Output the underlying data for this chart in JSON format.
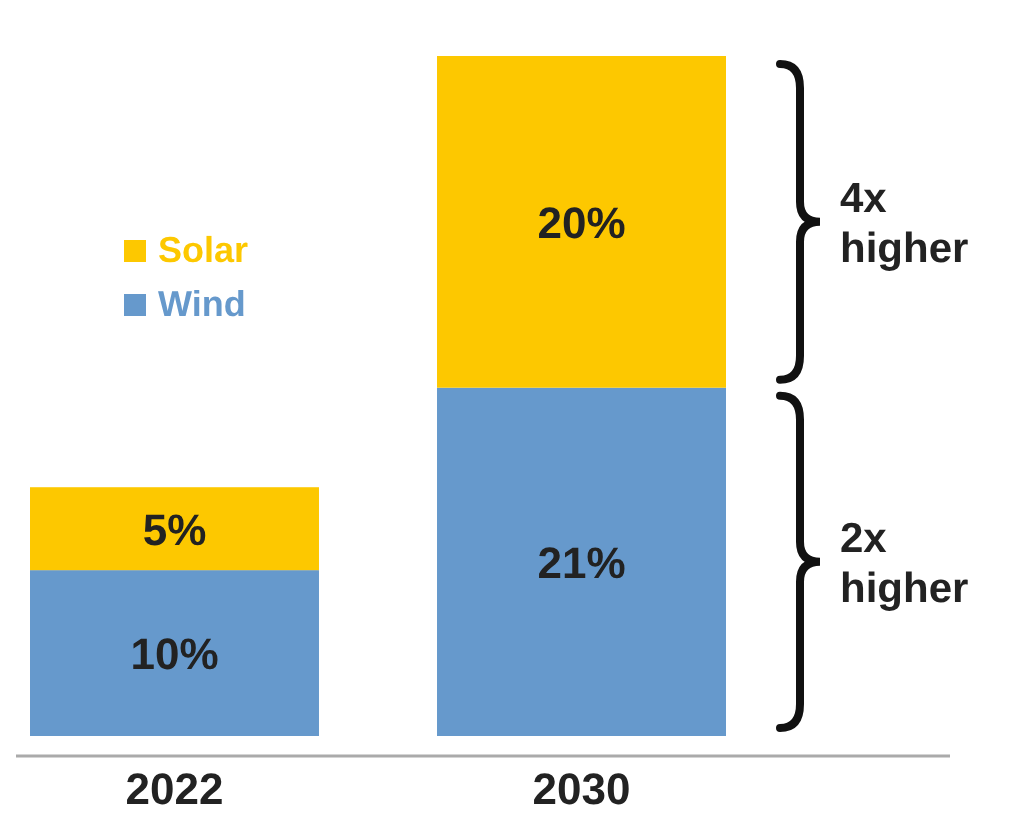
{
  "chart_data": {
    "type": "bar",
    "stacked": true,
    "categories": [
      "2022",
      "2030"
    ],
    "series": [
      {
        "name": "Wind",
        "color": "#6699cc",
        "values": [
          10,
          21
        ],
        "value_labels": [
          "10%",
          "21%"
        ]
      },
      {
        "name": "Solar",
        "color": "#fdc800",
        "values": [
          5,
          20
        ],
        "value_labels": [
          "5%",
          "20%"
        ]
      }
    ],
    "legend": "left",
    "annotations": [
      "4x higher",
      "2x higher"
    ]
  }
}
